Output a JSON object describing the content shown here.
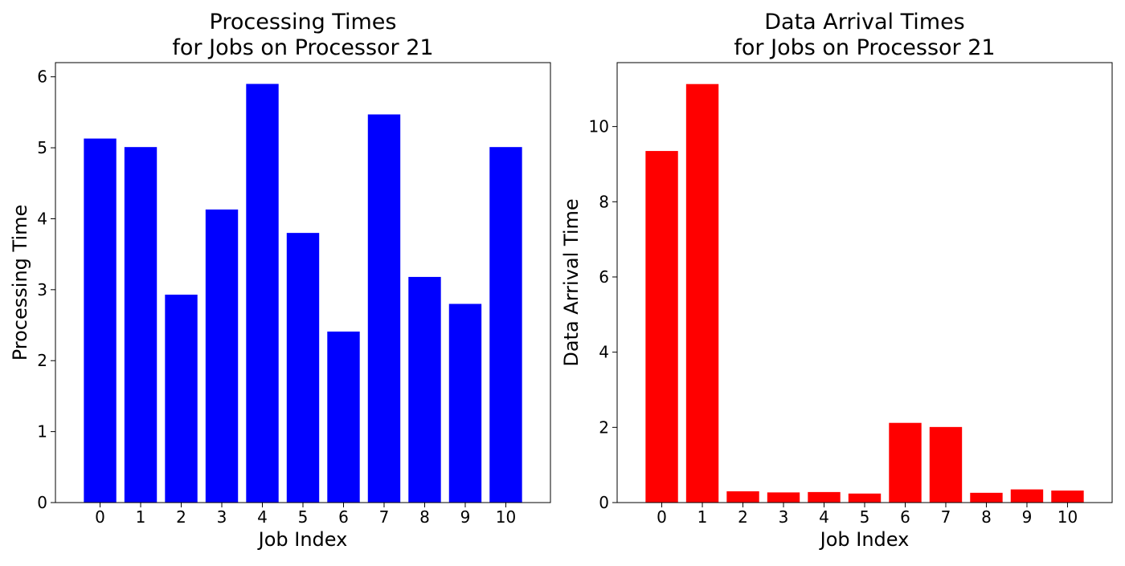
{
  "chart_data": [
    {
      "type": "bar",
      "title_lines": [
        "Processing Times",
        "for Jobs on Processor 21"
      ],
      "xlabel": "Job Index",
      "ylabel": "Processing Time",
      "categories": [
        "0",
        "1",
        "2",
        "3",
        "4",
        "5",
        "6",
        "7",
        "8",
        "9",
        "10"
      ],
      "values": [
        5.13,
        5.01,
        2.93,
        4.13,
        5.9,
        3.8,
        2.41,
        5.47,
        3.18,
        2.8,
        5.01
      ],
      "ylim": [
        0,
        6.2
      ],
      "yticks": [
        "0",
        "1",
        "2",
        "3",
        "4",
        "5",
        "6"
      ],
      "color": "#0000ff",
      "grid": false,
      "legend": "none"
    },
    {
      "type": "bar",
      "title_lines": [
        "Data Arrival Times",
        "for Jobs on Processor 21"
      ],
      "xlabel": "Job Index",
      "ylabel": "Data Arrival Time",
      "categories": [
        "0",
        "1",
        "2",
        "3",
        "4",
        "5",
        "6",
        "7",
        "8",
        "9",
        "10"
      ],
      "values": [
        9.35,
        11.13,
        0.3,
        0.27,
        0.28,
        0.24,
        2.12,
        2.01,
        0.26,
        0.35,
        0.32
      ],
      "ylim": [
        0,
        11.7
      ],
      "yticks": [
        "0",
        "2",
        "4",
        "6",
        "8",
        "10"
      ],
      "color": "#ff0000",
      "grid": false,
      "legend": "none"
    }
  ]
}
